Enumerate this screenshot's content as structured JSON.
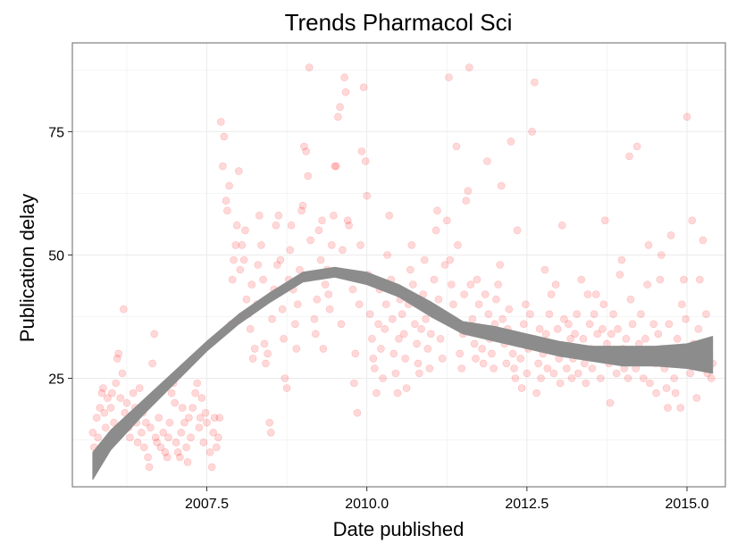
{
  "chart_data": {
    "type": "scatter",
    "title": "Trends Pharmacol Sci",
    "xlabel": "Date published",
    "ylabel": "Publication delay",
    "xlim": [
      2005.4,
      2015.6
    ],
    "ylim": [
      3,
      93
    ],
    "x_ticks": [
      2007.5,
      2010.0,
      2012.5,
      2015.0
    ],
    "x_tick_labels": [
      "2007.5",
      "2010.0",
      "2012.5",
      "2015.0"
    ],
    "y_ticks": [
      25,
      50,
      75
    ],
    "y_tick_labels": [
      "25",
      "50",
      "75"
    ],
    "grid": true,
    "legend": "none",
    "point_color": "#ff0000",
    "point_opacity": 0.15,
    "band_color": "#8c8c8c",
    "points": [
      [
        2005.72,
        14
      ],
      [
        2005.74,
        11
      ],
      [
        2005.78,
        17
      ],
      [
        2005.8,
        13
      ],
      [
        2005.83,
        19
      ],
      [
        2005.86,
        22
      ],
      [
        2005.88,
        23
      ],
      [
        2005.9,
        18
      ],
      [
        2005.92,
        15
      ],
      [
        2005.95,
        21
      ],
      [
        2005.98,
        12
      ],
      [
        2006.0,
        19
      ],
      [
        2006.02,
        22
      ],
      [
        2006.05,
        16
      ],
      [
        2006.08,
        24
      ],
      [
        2006.1,
        29
      ],
      [
        2006.12,
        30
      ],
      [
        2006.15,
        21
      ],
      [
        2006.18,
        26
      ],
      [
        2006.2,
        39
      ],
      [
        2006.22,
        18
      ],
      [
        2006.25,
        20
      ],
      [
        2006.28,
        15
      ],
      [
        2006.3,
        13
      ],
      [
        2006.32,
        17
      ],
      [
        2006.35,
        22
      ],
      [
        2006.38,
        19
      ],
      [
        2006.4,
        16
      ],
      [
        2006.42,
        12
      ],
      [
        2006.45,
        23
      ],
      [
        2006.48,
        14
      ],
      [
        2006.5,
        18
      ],
      [
        2006.52,
        11
      ],
      [
        2006.55,
        16
      ],
      [
        2006.58,
        9
      ],
      [
        2006.6,
        7
      ],
      [
        2006.62,
        15
      ],
      [
        2006.65,
        28
      ],
      [
        2006.68,
        34
      ],
      [
        2006.7,
        13
      ],
      [
        2006.72,
        12
      ],
      [
        2006.75,
        17
      ],
      [
        2006.78,
        11
      ],
      [
        2006.82,
        14
      ],
      [
        2006.85,
        10
      ],
      [
        2006.88,
        9
      ],
      [
        2006.9,
        13
      ],
      [
        2006.92,
        16
      ],
      [
        2006.95,
        22
      ],
      [
        2006.98,
        24
      ],
      [
        2007.0,
        20
      ],
      [
        2007.02,
        12
      ],
      [
        2007.05,
        10
      ],
      [
        2007.08,
        9
      ],
      [
        2007.1,
        14
      ],
      [
        2007.12,
        19
      ],
      [
        2007.15,
        16
      ],
      [
        2007.18,
        11
      ],
      [
        2007.2,
        8
      ],
      [
        2007.22,
        17
      ],
      [
        2007.25,
        13
      ],
      [
        2007.28,
        19
      ],
      [
        2007.32,
        22
      ],
      [
        2007.35,
        24
      ],
      [
        2007.38,
        15
      ],
      [
        2007.4,
        17
      ],
      [
        2007.42,
        21
      ],
      [
        2007.45,
        12
      ],
      [
        2007.48,
        18
      ],
      [
        2007.5,
        16
      ],
      [
        2007.55,
        10
      ],
      [
        2007.58,
        7
      ],
      [
        2007.6,
        14
      ],
      [
        2007.62,
        17
      ],
      [
        2007.65,
        11
      ],
      [
        2007.68,
        13
      ],
      [
        2007.7,
        17
      ],
      [
        2007.72,
        77
      ],
      [
        2007.75,
        68
      ],
      [
        2007.77,
        74
      ],
      [
        2007.8,
        61
      ],
      [
        2007.82,
        59
      ],
      [
        2007.85,
        64
      ],
      [
        2007.88,
        36
      ],
      [
        2007.9,
        45
      ],
      [
        2007.92,
        49
      ],
      [
        2007.95,
        52
      ],
      [
        2007.97,
        56
      ],
      [
        2008.0,
        67
      ],
      [
        2008.02,
        47
      ],
      [
        2008.05,
        52
      ],
      [
        2008.08,
        49
      ],
      [
        2008.1,
        55
      ],
      [
        2008.12,
        41
      ],
      [
        2008.15,
        38
      ],
      [
        2008.18,
        35
      ],
      [
        2008.2,
        44
      ],
      [
        2008.22,
        29
      ],
      [
        2008.25,
        31
      ],
      [
        2008.28,
        40
      ],
      [
        2008.3,
        48
      ],
      [
        2008.32,
        58
      ],
      [
        2008.35,
        52
      ],
      [
        2008.38,
        45
      ],
      [
        2008.4,
        32
      ],
      [
        2008.42,
        28
      ],
      [
        2008.45,
        30
      ],
      [
        2008.48,
        16
      ],
      [
        2008.5,
        14
      ],
      [
        2008.52,
        37
      ],
      [
        2008.55,
        43
      ],
      [
        2008.58,
        56
      ],
      [
        2008.6,
        48
      ],
      [
        2008.62,
        58
      ],
      [
        2008.65,
        49
      ],
      [
        2008.68,
        39
      ],
      [
        2008.7,
        33
      ],
      [
        2008.72,
        25
      ],
      [
        2008.75,
        23
      ],
      [
        2008.78,
        45
      ],
      [
        2008.8,
        51
      ],
      [
        2008.82,
        56
      ],
      [
        2008.85,
        43
      ],
      [
        2008.88,
        36
      ],
      [
        2008.9,
        31
      ],
      [
        2008.92,
        40
      ],
      [
        2008.95,
        47
      ],
      [
        2008.98,
        59
      ],
      [
        2009.0,
        60
      ],
      [
        2009.02,
        72
      ],
      [
        2009.05,
        71
      ],
      [
        2009.08,
        66
      ],
      [
        2009.1,
        88
      ],
      [
        2009.12,
        53
      ],
      [
        2009.15,
        46
      ],
      [
        2009.18,
        37
      ],
      [
        2009.2,
        34
      ],
      [
        2009.22,
        41
      ],
      [
        2009.25,
        55
      ],
      [
        2009.28,
        49
      ],
      [
        2009.3,
        57
      ],
      [
        2009.32,
        31
      ],
      [
        2009.35,
        44
      ],
      [
        2009.38,
        47
      ],
      [
        2009.4,
        42
      ],
      [
        2009.42,
        39
      ],
      [
        2009.45,
        52
      ],
      [
        2009.48,
        58
      ],
      [
        2009.5,
        68
      ],
      [
        2009.52,
        68
      ],
      [
        2009.55,
        78
      ],
      [
        2009.58,
        80
      ],
      [
        2009.6,
        36
      ],
      [
        2009.62,
        51
      ],
      [
        2009.65,
        86
      ],
      [
        2009.67,
        83
      ],
      [
        2009.7,
        57
      ],
      [
        2009.72,
        56
      ],
      [
        2009.75,
        46
      ],
      [
        2009.78,
        43
      ],
      [
        2009.8,
        24
      ],
      [
        2009.82,
        30
      ],
      [
        2009.85,
        18
      ],
      [
        2009.88,
        40
      ],
      [
        2009.9,
        52
      ],
      [
        2009.92,
        71
      ],
      [
        2009.95,
        84
      ],
      [
        2009.98,
        69
      ],
      [
        2010.0,
        62
      ],
      [
        2010.02,
        46
      ],
      [
        2010.05,
        38
      ],
      [
        2010.08,
        33
      ],
      [
        2010.1,
        29
      ],
      [
        2010.12,
        27
      ],
      [
        2010.15,
        22
      ],
      [
        2010.18,
        36
      ],
      [
        2010.2,
        43
      ],
      [
        2010.22,
        31
      ],
      [
        2010.25,
        25
      ],
      [
        2010.28,
        35
      ],
      [
        2010.3,
        40
      ],
      [
        2010.32,
        50
      ],
      [
        2010.35,
        58
      ],
      [
        2010.38,
        45
      ],
      [
        2010.4,
        37
      ],
      [
        2010.42,
        30
      ],
      [
        2010.45,
        26
      ],
      [
        2010.48,
        22
      ],
      [
        2010.5,
        33
      ],
      [
        2010.52,
        41
      ],
      [
        2010.55,
        38
      ],
      [
        2010.58,
        34
      ],
      [
        2010.6,
        29
      ],
      [
        2010.62,
        23
      ],
      [
        2010.65,
        40
      ],
      [
        2010.68,
        47
      ],
      [
        2010.7,
        52
      ],
      [
        2010.72,
        44
      ],
      [
        2010.75,
        36
      ],
      [
        2010.78,
        32
      ],
      [
        2010.8,
        28
      ],
      [
        2010.82,
        26
      ],
      [
        2010.85,
        35
      ],
      [
        2010.88,
        42
      ],
      [
        2010.9,
        49
      ],
      [
        2010.92,
        37
      ],
      [
        2010.95,
        31
      ],
      [
        2010.98,
        27
      ],
      [
        2011.0,
        34
      ],
      [
        2011.02,
        39
      ],
      [
        2011.05,
        45
      ],
      [
        2011.08,
        55
      ],
      [
        2011.1,
        59
      ],
      [
        2011.12,
        41
      ],
      [
        2011.15,
        33
      ],
      [
        2011.18,
        29
      ],
      [
        2011.2,
        38
      ],
      [
        2011.22,
        48
      ],
      [
        2011.25,
        57
      ],
      [
        2011.28,
        86
      ],
      [
        2011.3,
        49
      ],
      [
        2011.32,
        44
      ],
      [
        2011.35,
        40
      ],
      [
        2011.38,
        36
      ],
      [
        2011.4,
        72
      ],
      [
        2011.42,
        52
      ],
      [
        2011.45,
        30
      ],
      [
        2011.48,
        27
      ],
      [
        2011.5,
        34
      ],
      [
        2011.52,
        42
      ],
      [
        2011.55,
        61
      ],
      [
        2011.58,
        63
      ],
      [
        2011.6,
        88
      ],
      [
        2011.62,
        44
      ],
      [
        2011.65,
        37
      ],
      [
        2011.68,
        32
      ],
      [
        2011.7,
        29
      ],
      [
        2011.72,
        45
      ],
      [
        2011.75,
        40
      ],
      [
        2011.78,
        35
      ],
      [
        2011.8,
        31
      ],
      [
        2011.82,
        28
      ],
      [
        2011.85,
        42
      ],
      [
        2011.88,
        69
      ],
      [
        2011.9,
        38
      ],
      [
        2011.92,
        33
      ],
      [
        2011.95,
        30
      ],
      [
        2011.98,
        27
      ],
      [
        2012.0,
        36
      ],
      [
        2012.02,
        41
      ],
      [
        2012.05,
        44
      ],
      [
        2012.08,
        48
      ],
      [
        2012.1,
        64
      ],
      [
        2012.12,
        37
      ],
      [
        2012.15,
        32
      ],
      [
        2012.18,
        28
      ],
      [
        2012.2,
        35
      ],
      [
        2012.22,
        39
      ],
      [
        2012.25,
        73
      ],
      [
        2012.28,
        30
      ],
      [
        2012.3,
        27
      ],
      [
        2012.32,
        25
      ],
      [
        2012.35,
        55
      ],
      [
        2012.38,
        33
      ],
      [
        2012.4,
        29
      ],
      [
        2012.42,
        23
      ],
      [
        2012.45,
        36
      ],
      [
        2012.48,
        40
      ],
      [
        2012.5,
        26
      ],
      [
        2012.52,
        31
      ],
      [
        2012.55,
        38
      ],
      [
        2012.58,
        75
      ],
      [
        2012.6,
        33
      ],
      [
        2012.62,
        85
      ],
      [
        2012.65,
        22
      ],
      [
        2012.68,
        28
      ],
      [
        2012.7,
        35
      ],
      [
        2012.72,
        25
      ],
      [
        2012.75,
        30
      ],
      [
        2012.78,
        47
      ],
      [
        2012.8,
        34
      ],
      [
        2012.82,
        27
      ],
      [
        2012.85,
        38
      ],
      [
        2012.88,
        42
      ],
      [
        2012.9,
        32
      ],
      [
        2012.92,
        26
      ],
      [
        2012.95,
        44
      ],
      [
        2012.98,
        35
      ],
      [
        2013.0,
        29
      ],
      [
        2013.02,
        24
      ],
      [
        2013.05,
        56
      ],
      [
        2013.08,
        37
      ],
      [
        2013.1,
        31
      ],
      [
        2013.12,
        27
      ],
      [
        2013.15,
        36
      ],
      [
        2013.18,
        33
      ],
      [
        2013.2,
        25
      ],
      [
        2013.22,
        29
      ],
      [
        2013.25,
        34
      ],
      [
        2013.28,
        38
      ],
      [
        2013.3,
        26
      ],
      [
        2013.32,
        30
      ],
      [
        2013.35,
        45
      ],
      [
        2013.38,
        33
      ],
      [
        2013.4,
        28
      ],
      [
        2013.42,
        24
      ],
      [
        2013.45,
        42
      ],
      [
        2013.48,
        36
      ],
      [
        2013.5,
        31
      ],
      [
        2013.52,
        27
      ],
      [
        2013.55,
        38
      ],
      [
        2013.58,
        42
      ],
      [
        2013.6,
        34
      ],
      [
        2013.62,
        29
      ],
      [
        2013.65,
        25
      ],
      [
        2013.68,
        35
      ],
      [
        2013.7,
        40
      ],
      [
        2013.72,
        57
      ],
      [
        2013.75,
        32
      ],
      [
        2013.78,
        28
      ],
      [
        2013.8,
        20
      ],
      [
        2013.82,
        34
      ],
      [
        2013.85,
        38
      ],
      [
        2013.88,
        30
      ],
      [
        2013.9,
        26
      ],
      [
        2013.92,
        35
      ],
      [
        2013.95,
        46
      ],
      [
        2013.98,
        49
      ],
      [
        2014.0,
        31
      ],
      [
        2014.02,
        27
      ],
      [
        2014.05,
        33
      ],
      [
        2014.08,
        25
      ],
      [
        2014.1,
        70
      ],
      [
        2014.12,
        41
      ],
      [
        2014.15,
        36
      ],
      [
        2014.18,
        30
      ],
      [
        2014.2,
        27
      ],
      [
        2014.22,
        72
      ],
      [
        2014.25,
        32
      ],
      [
        2014.28,
        38
      ],
      [
        2014.3,
        29
      ],
      [
        2014.32,
        25
      ],
      [
        2014.35,
        33
      ],
      [
        2014.38,
        44
      ],
      [
        2014.4,
        52
      ],
      [
        2014.42,
        24
      ],
      [
        2014.45,
        30
      ],
      [
        2014.48,
        36
      ],
      [
        2014.5,
        28
      ],
      [
        2014.52,
        22
      ],
      [
        2014.55,
        34
      ],
      [
        2014.58,
        45
      ],
      [
        2014.6,
        50
      ],
      [
        2014.62,
        31
      ],
      [
        2014.65,
        27
      ],
      [
        2014.68,
        23
      ],
      [
        2014.7,
        19
      ],
      [
        2014.72,
        36
      ],
      [
        2014.75,
        54
      ],
      [
        2014.78,
        30
      ],
      [
        2014.8,
        25
      ],
      [
        2014.82,
        22
      ],
      [
        2014.85,
        33
      ],
      [
        2014.88,
        28
      ],
      [
        2014.9,
        19
      ],
      [
        2014.92,
        40
      ],
      [
        2014.95,
        45
      ],
      [
        2014.98,
        37
      ],
      [
        2015.0,
        78
      ],
      [
        2015.02,
        30
      ],
      [
        2015.05,
        26
      ],
      [
        2015.08,
        57
      ],
      [
        2015.1,
        32
      ],
      [
        2015.12,
        28
      ],
      [
        2015.15,
        21
      ],
      [
        2015.18,
        35
      ],
      [
        2015.2,
        45
      ],
      [
        2015.22,
        29
      ],
      [
        2015.25,
        53
      ],
      [
        2015.28,
        27
      ],
      [
        2015.3,
        38
      ],
      [
        2015.32,
        26
      ],
      [
        2015.35,
        30
      ],
      [
        2015.38,
        25
      ],
      [
        2015.4,
        28
      ]
    ],
    "smooth_band": {
      "x": [
        2005.72,
        2006.0,
        2006.5,
        2007.0,
        2007.5,
        2008.0,
        2008.5,
        2009.0,
        2009.5,
        2010.0,
        2010.5,
        2011.0,
        2011.5,
        2012.0,
        2012.5,
        2013.0,
        2013.5,
        2014.0,
        2014.5,
        2015.0,
        2015.4
      ],
      "lower": [
        4.5,
        10.5,
        17.5,
        24,
        30.5,
        36,
        40.5,
        44.5,
        45.5,
        44,
        41.5,
        37.5,
        34,
        32.5,
        31,
        29.5,
        28.5,
        27.5,
        27.5,
        27,
        26
      ],
      "upper": [
        10,
        14.5,
        20.5,
        26.5,
        32.5,
        38,
        42.5,
        46.5,
        47.5,
        46.5,
        44,
        40.5,
        36.5,
        35.5,
        34,
        32.5,
        31.5,
        31.5,
        31.5,
        32,
        33.5
      ]
    }
  }
}
